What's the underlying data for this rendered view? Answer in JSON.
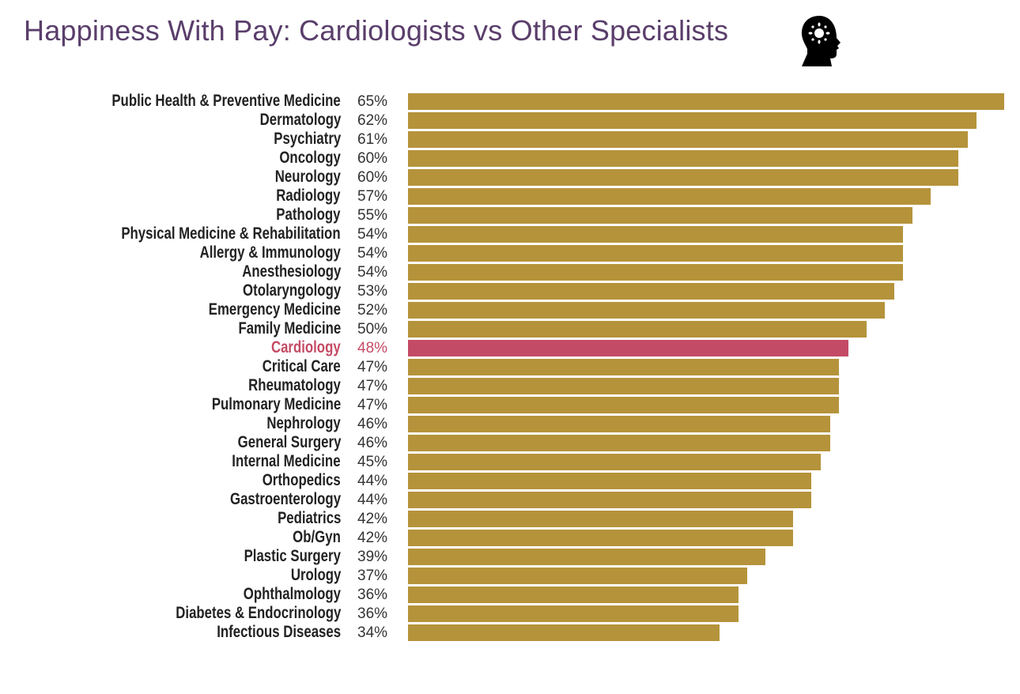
{
  "title": "Happiness With Pay: Cardiologists vs Other Specialists",
  "icon": "head-with-sun-icon",
  "colors": {
    "bar": "#b5933b",
    "highlight": "#c44b65",
    "title": "#5a3e6b"
  },
  "chart_data": {
    "type": "bar",
    "orientation": "horizontal",
    "title": "Happiness With Pay: Cardiologists vs Other Specialists",
    "xlabel": "",
    "ylabel": "",
    "xlim": [
      0,
      65
    ],
    "grid": false,
    "highlight": "Cardiology",
    "categories": [
      "Public Health & Preventive Medicine",
      "Dermatology",
      "Psychiatry",
      "Oncology",
      "Neurology",
      "Radiology",
      "Pathology",
      "Physical Medicine & Rehabilitation",
      "Allergy & Immunology",
      "Anesthesiology",
      "Otolaryngology",
      "Emergency Medicine",
      "Family Medicine",
      "Cardiology",
      "Critical Care",
      "Rheumatology",
      "Pulmonary Medicine",
      "Nephrology",
      "General Surgery",
      "Internal Medicine",
      "Orthopedics",
      "Gastroenterology",
      "Pediatrics",
      "Ob/Gyn",
      "Plastic Surgery",
      "Urology",
      "Ophthalmology",
      "Diabetes & Endocrinology",
      "Infectious Diseases"
    ],
    "values": [
      65,
      62,
      61,
      60,
      60,
      57,
      55,
      54,
      54,
      54,
      53,
      52,
      50,
      48,
      47,
      47,
      47,
      46,
      46,
      45,
      44,
      44,
      42,
      42,
      39,
      37,
      36,
      36,
      34
    ],
    "value_labels": [
      "65%",
      "62%",
      "61%",
      "60%",
      "60%",
      "57%",
      "55%",
      "54%",
      "54%",
      "54%",
      "53%",
      "52%",
      "50%",
      "48%",
      "47%",
      "47%",
      "47%",
      "46%",
      "46%",
      "45%",
      "44%",
      "44%",
      "42%",
      "42%",
      "39%",
      "37%",
      "36%",
      "36%",
      "34%"
    ]
  }
}
